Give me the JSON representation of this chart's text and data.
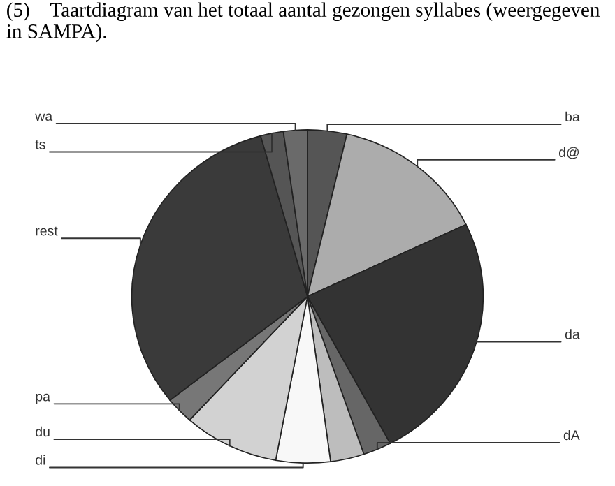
{
  "chart_data": {
    "type": "pie",
    "title": "(5)    Taartdiagram van het totaal aantal gezongen syllabes (weergegeven in SAMPA).",
    "categories": [
      "ba",
      "d@",
      "da",
      "dA",
      null,
      "di",
      "du",
      "pa",
      "rest",
      "ts",
      "wa"
    ],
    "values": [
      3.6,
      14.3,
      24.3,
      2.6,
      3.1,
      5.0,
      8.8,
      2.6,
      31.4,
      2.1,
      2.2
    ],
    "colors": [
      "#555555",
      "#acacac",
      "#333333",
      "#666666",
      "#bdbdbd",
      "#f8f8f8",
      "#d2d2d2",
      "#777777",
      "#3a3a3a",
      "#555555",
      "#6a6a6a"
    ]
  }
}
